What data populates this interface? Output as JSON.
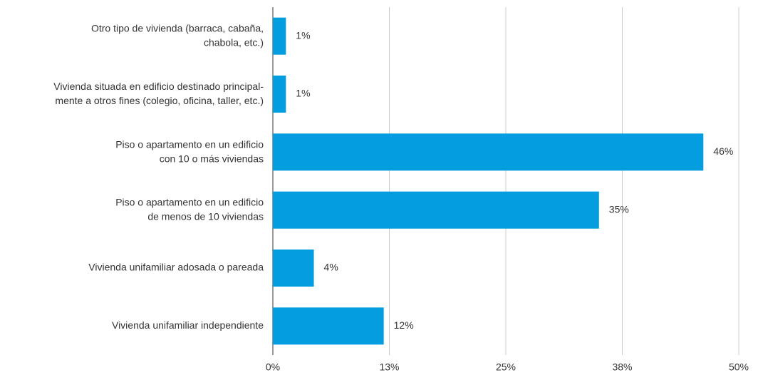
{
  "chart_data": {
    "type": "bar",
    "orientation": "horizontal",
    "categories": [
      "Otro tipo de vivienda (barraca, cabaña,\nchabola, etc.)",
      "Vivienda situada en edificio destinado principal-\nmente a otros fines (colegio, oficina, taller, etc.)",
      "Piso o apartamento en un edificio\ncon 10 o más viviendas",
      "Piso o apartamento en un edificio\nde menos de 10 viviendas",
      "Vivienda unifamiliar adosada o pareada",
      "Vivienda unifamiliar independiente"
    ],
    "values": [
      1.4,
      1.4,
      46.2,
      35,
      4.4,
      11.9
    ],
    "value_labels": [
      "1%",
      "1%",
      "46%",
      "35%",
      "4%",
      "12%"
    ],
    "color": "#049ee0",
    "xlim": [
      0,
      50
    ],
    "xticks": [
      {
        "value": 0,
        "label": "0%"
      },
      {
        "value": 12.5,
        "label": "13%"
      },
      {
        "value": 25,
        "label": "25%"
      },
      {
        "value": 37.5,
        "label": "38%"
      },
      {
        "value": 50,
        "label": "50%"
      }
    ],
    "grid": true
  }
}
